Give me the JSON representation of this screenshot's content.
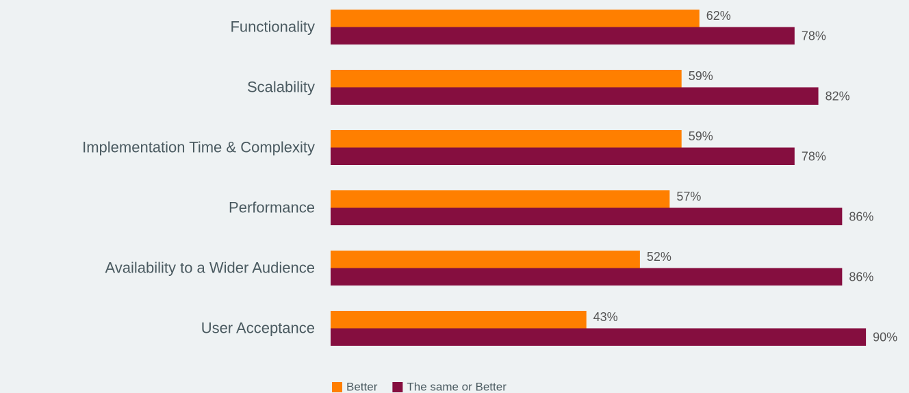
{
  "chart_data": {
    "type": "hbar",
    "categories": [
      "Functionality",
      "Scalability",
      "Implementation Time & Complexity",
      "Performance",
      "Availability to a Wider Audience",
      "User Acceptance"
    ],
    "series": [
      {
        "name": "Better",
        "color": "#ff7f00",
        "values": [
          62,
          59,
          59,
          57,
          52,
          43
        ],
        "value_labels": [
          "62%",
          "59%",
          "59%",
          "57%",
          "52%",
          "43%"
        ]
      },
      {
        "name": "The same or Better",
        "color": "#850e3f",
        "values": [
          78,
          82,
          78,
          86,
          86,
          90
        ],
        "value_labels": [
          "78%",
          "82%",
          "78%",
          "86%",
          "86%",
          "90%"
        ]
      }
    ],
    "xlim": [
      0,
      100
    ]
  }
}
